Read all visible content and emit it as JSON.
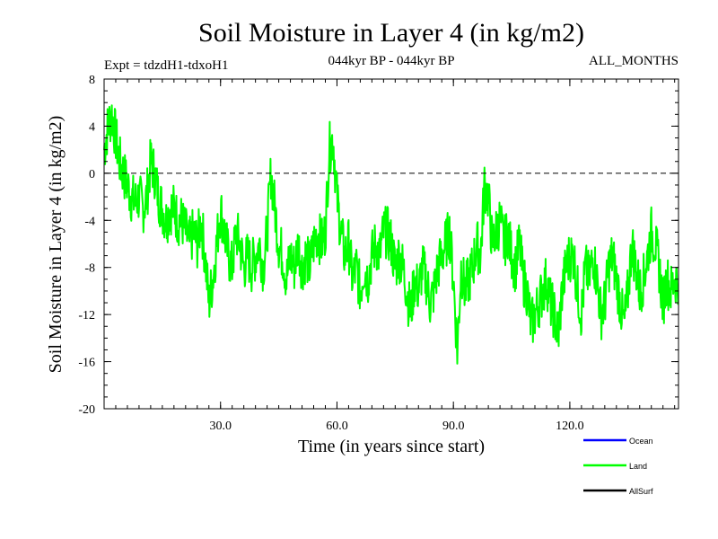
{
  "chart_data": {
    "type": "line",
    "title": "Soil Moisture in Layer 4 (in kg/m2)",
    "subtitle_left": "Expt = tdzdH1-tdxoH1",
    "subtitle_center": "044kyr BP - 044kyr BP",
    "subtitle_right": "ALL_MONTHS",
    "xlabel": "Time (in years since start)",
    "ylabel": "Soil Moisture in Layer 4 (in kg/m2)",
    "xlim": [
      0,
      148
    ],
    "ylim": [
      -20,
      8
    ],
    "x_tick_labels": [
      "30.0",
      "60.0",
      "90.0",
      "120.0"
    ],
    "x_tick_values": [
      30,
      60,
      90,
      120
    ],
    "y_tick_labels": [
      "8",
      "4",
      "0",
      "-4",
      "-8",
      "-12",
      "-16",
      "-20"
    ],
    "y_tick_values": [
      8,
      4,
      0,
      -4,
      -8,
      -12,
      -16,
      -20
    ],
    "zero_line": true,
    "legend": [
      {
        "name": "Ocean",
        "color": "#0000ff"
      },
      {
        "name": "Land",
        "color": "#00ff00"
      },
      {
        "name": "AllSurf",
        "color": "#000000"
      }
    ],
    "series": [
      {
        "name": "Land",
        "color": "#00ff00",
        "x_start": 0,
        "x_step": 1,
        "values": [
          2,
          4,
          5,
          3,
          1,
          0,
          -1,
          -2,
          -2.5,
          -2,
          -3,
          -2,
          1,
          0,
          -2,
          -3,
          -4,
          -3,
          -3,
          -4,
          -4,
          -5,
          -6,
          -5,
          -6,
          -4,
          -7,
          -11,
          -9,
          -6,
          -3,
          -5,
          -7,
          -8,
          -5,
          -6,
          -8,
          -7,
          -8,
          -7,
          -6,
          -8,
          -5,
          0,
          -3,
          -6,
          -7,
          -9,
          -7,
          -8,
          -6,
          -8,
          -7,
          -8,
          -6,
          -5,
          -6,
          -5,
          2,
          3,
          -2,
          -5,
          -7,
          -6,
          -9,
          -8,
          -10,
          -8,
          -9,
          -7,
          -6,
          -7,
          -5,
          -5,
          -6,
          -8,
          -7,
          -8,
          -10,
          -12,
          -9,
          -10,
          -8,
          -9,
          -11,
          -10,
          -8,
          -7,
          -6,
          -5,
          -9,
          -15,
          -8,
          -10,
          -9,
          -8,
          -6,
          -7,
          -1,
          -2,
          -6,
          -5,
          -4,
          -6,
          -5,
          -7,
          -8,
          -6,
          -9,
          -10,
          -13,
          -12,
          -11,
          -10,
          -9,
          -11,
          -12,
          -14,
          -10,
          -8,
          -7,
          -7,
          -10,
          -12,
          -8,
          -9,
          -7,
          -9,
          -12,
          -11,
          -8,
          -7,
          -9,
          -11,
          -13,
          -10,
          -6,
          -8,
          -10,
          -9,
          -7,
          -5,
          -6,
          -8,
          -11,
          -9,
          -10,
          -9
        ]
      }
    ]
  }
}
